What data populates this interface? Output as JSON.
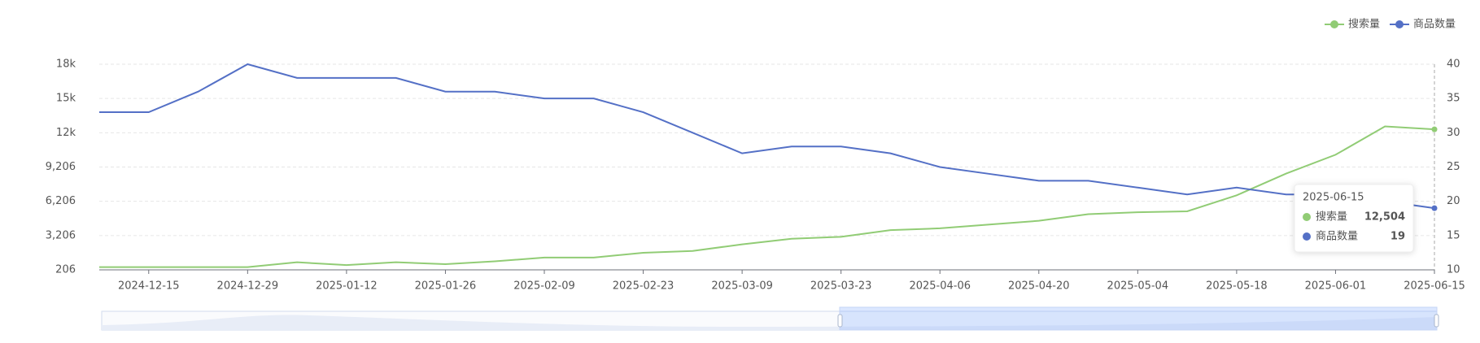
{
  "chart_data": {
    "type": "line",
    "categories": [
      null,
      "2024-12-15",
      null,
      "2024-12-29",
      null,
      "2025-01-12",
      null,
      "2025-01-26",
      null,
      "2025-02-09",
      null,
      "2025-02-23",
      null,
      "2025-03-09",
      null,
      "2025-03-23",
      null,
      "2025-04-06",
      null,
      "2025-04-20",
      null,
      "2025-05-04",
      null,
      "2025-05-18",
      null,
      "2025-06-01",
      null,
      "2025-06-15"
    ],
    "series": [
      {
        "name": "搜索量",
        "color": "#91cc75",
        "axis": "y",
        "values": [
          450,
          450,
          450,
          450,
          870,
          620,
          870,
          700,
          950,
          1280,
          1280,
          1700,
          1860,
          2440,
          2930,
          3100,
          3680,
          3840,
          4170,
          4500,
          5080,
          5250,
          5330,
          6730,
          8630,
          10280,
          12760,
          12504
        ],
        "value_labels": [
          null,
          null,
          null,
          null,
          null,
          null,
          null,
          null,
          null,
          null,
          null,
          null,
          null,
          null,
          null,
          null,
          null,
          null,
          null,
          null,
          null,
          null,
          null,
          null,
          null,
          null,
          null,
          "12,504"
        ]
      },
      {
        "name": "商品数量",
        "color": "#5470c6",
        "axis": "y2",
        "values": [
          33,
          33,
          36,
          40,
          38,
          38,
          38,
          36,
          36,
          35,
          35,
          33,
          30,
          27,
          28,
          28,
          27,
          25,
          24,
          23,
          23,
          22,
          21,
          22,
          21,
          21,
          20,
          19
        ],
        "value_labels": [
          null,
          null,
          null,
          null,
          null,
          null,
          null,
          null,
          null,
          null,
          null,
          null,
          null,
          null,
          null,
          null,
          null,
          null,
          null,
          null,
          null,
          null,
          null,
          null,
          null,
          null,
          null,
          "19"
        ]
      }
    ],
    "ylim": [
      206,
      18206
    ],
    "yticks": [
      206,
      {
        "value": 3206,
        "label": "3,206"
      },
      {
        "value": 6206,
        "label": "6,206"
      },
      {
        "value": 9206,
        "label": "9,206"
      },
      {
        "value": 12206,
        "label": "12k"
      },
      {
        "value": 15206,
        "label": "15k"
      },
      {
        "value": 18206,
        "label": "18k"
      }
    ],
    "y2lim": [
      10,
      40
    ],
    "y2ticks": [
      10,
      15,
      20,
      25,
      30,
      35,
      40
    ],
    "grid": true,
    "legend": "top-right",
    "tooltip_index": 27
  }
}
